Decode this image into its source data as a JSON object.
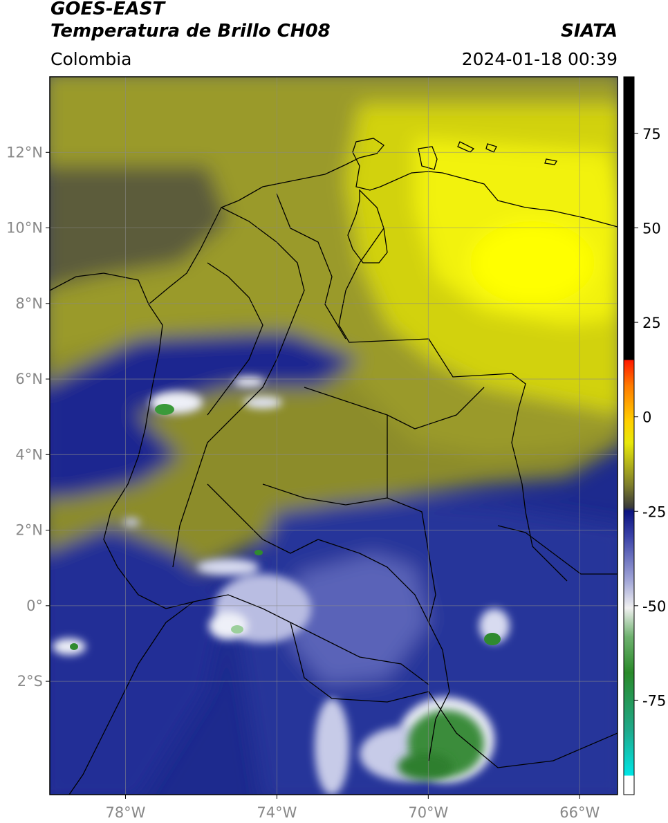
{
  "header": {
    "satellite": "GOES-EAST",
    "product": "Temperatura de Brillo CH08",
    "agency": "SIATA",
    "region": "Colombia",
    "timestamp": "2024-01-18 00:39"
  },
  "map": {
    "lon_range": [
      -80,
      -65
    ],
    "lat_range": [
      -5,
      14
    ],
    "lon_ticks": [
      {
        "value": -78,
        "label": "78°W"
      },
      {
        "value": -74,
        "label": "74°W"
      },
      {
        "value": -70,
        "label": "70°W"
      },
      {
        "value": -66,
        "label": "66°W"
      }
    ],
    "lat_ticks": [
      {
        "value": 12,
        "label": "12°N"
      },
      {
        "value": 10,
        "label": "10°N"
      },
      {
        "value": 8,
        "label": "8°N"
      },
      {
        "value": 6,
        "label": "6°N"
      },
      {
        "value": 4,
        "label": "4°N"
      },
      {
        "value": 2,
        "label": "2°N"
      },
      {
        "value": 0,
        "label": "0°"
      },
      {
        "value": -2,
        "label": "2°S"
      }
    ],
    "grid": true,
    "colors": {
      "cold_blue": "#1c2a8c",
      "olive": "#8e8e2a",
      "yellow": "#f3f00a",
      "white_cloud": "#e8eaf5",
      "green_core": "#2f8a2f"
    }
  },
  "colorbar": {
    "range": [
      -100,
      90
    ],
    "ticks": [
      {
        "value": 75,
        "label": "75"
      },
      {
        "value": 50,
        "label": "50"
      },
      {
        "value": 25,
        "label": "25"
      },
      {
        "value": 0,
        "label": "0"
      },
      {
        "value": -25,
        "label": "-25"
      },
      {
        "value": -50,
        "label": "-50"
      },
      {
        "value": -75,
        "label": "-75"
      }
    ]
  }
}
